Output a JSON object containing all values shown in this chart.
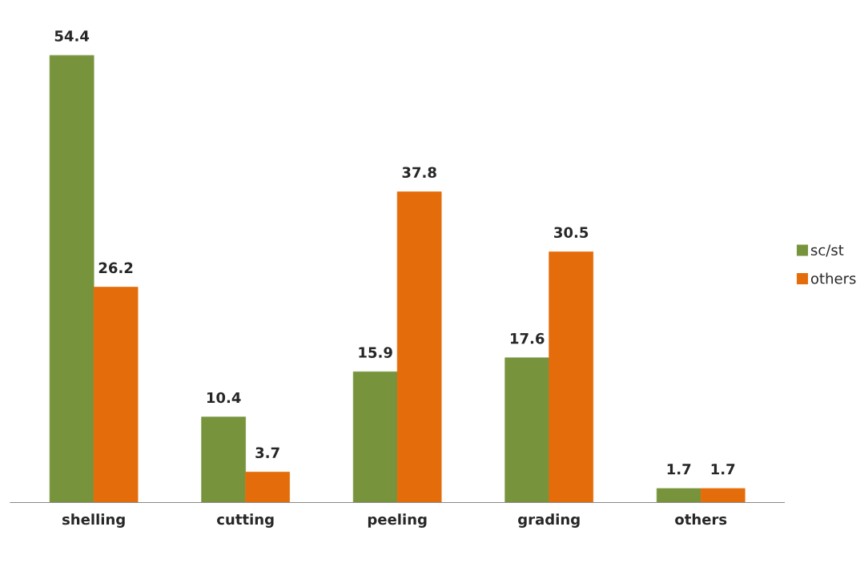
{
  "chart_data": {
    "type": "bar",
    "categories": [
      "shelling",
      "cutting",
      "peeling",
      "grading",
      "others"
    ],
    "series": [
      {
        "name": "sc/st",
        "color": "#77933c",
        "values": [
          54.4,
          10.4,
          15.9,
          17.6,
          1.7
        ]
      },
      {
        "name": "others",
        "color": "#e46c0a",
        "values": [
          26.2,
          3.7,
          37.8,
          30.5,
          1.7
        ]
      }
    ],
    "data_labels": true,
    "legend": "right",
    "grid": false
  }
}
